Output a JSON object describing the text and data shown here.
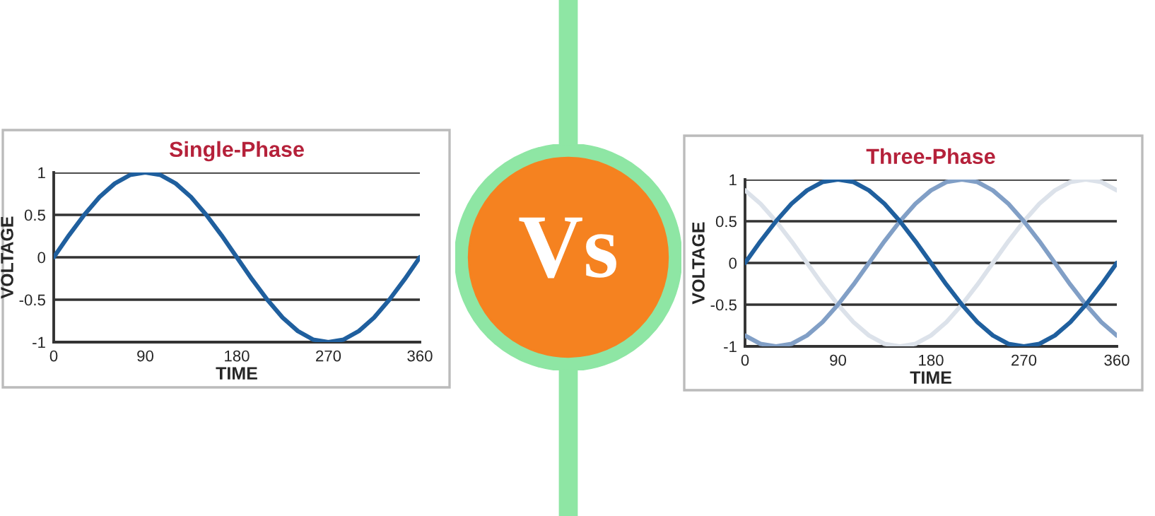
{
  "chart_data": [
    {
      "type": "line",
      "title": "Single-Phase",
      "xlabel": "TIME",
      "ylabel": "VOLTAGE",
      "xlim": [
        0,
        360
      ],
      "ylim": [
        -1,
        1
      ],
      "xticks": [
        0,
        90,
        180,
        270,
        360
      ],
      "yticks": [
        -1,
        -0.5,
        0,
        0.5,
        1
      ],
      "grid": "y",
      "legend": false,
      "marker": "none",
      "line_style": "solid",
      "x": [
        0,
        15,
        30,
        45,
        60,
        75,
        90,
        105,
        120,
        135,
        150,
        165,
        180,
        195,
        210,
        225,
        240,
        255,
        270,
        285,
        300,
        315,
        330,
        345,
        360
      ],
      "series": [
        {
          "color": "#1f5f9e",
          "values": [
            0,
            0.26,
            0.5,
            0.71,
            0.87,
            0.97,
            1,
            0.97,
            0.87,
            0.71,
            0.5,
            0.26,
            0,
            -0.26,
            -0.5,
            -0.71,
            -0.87,
            -0.97,
            -1,
            -0.97,
            -0.87,
            -0.71,
            -0.5,
            -0.26,
            0
          ]
        }
      ]
    },
    {
      "type": "other",
      "annotations": [
        "Vs"
      ]
    },
    {
      "type": "line",
      "title": "Three-Phase",
      "xlabel": "TIME",
      "ylabel": "VOLTAGE",
      "xlim": [
        0,
        360
      ],
      "ylim": [
        -1,
        1
      ],
      "xticks": [
        0,
        90,
        180,
        270,
        360
      ],
      "yticks": [
        -1,
        -0.5,
        0,
        0.5,
        1
      ],
      "grid": "y",
      "legend": false,
      "marker": "none",
      "line_style": "solid",
      "x": [
        0,
        15,
        30,
        45,
        60,
        75,
        90,
        105,
        120,
        135,
        150,
        165,
        180,
        195,
        210,
        225,
        240,
        255,
        270,
        285,
        300,
        315,
        330,
        345,
        360
      ],
      "series": [
        {
          "color": "#dce2ea",
          "values": [
            0.87,
            0.71,
            0.5,
            0.26,
            0,
            -0.26,
            -0.5,
            -0.71,
            -0.87,
            -0.97,
            -1,
            -0.97,
            -0.87,
            -0.71,
            -0.5,
            -0.26,
            0,
            0.26,
            0.5,
            0.71,
            0.87,
            0.97,
            1,
            0.97,
            0.87
          ]
        },
        {
          "color": "#819fc6",
          "values": [
            -0.87,
            -0.97,
            -1,
            -0.97,
            -0.87,
            -0.71,
            -0.5,
            -0.26,
            0,
            0.26,
            0.5,
            0.71,
            0.87,
            0.97,
            1,
            0.97,
            0.87,
            0.71,
            0.5,
            0.26,
            0,
            -0.26,
            -0.5,
            -0.71,
            -0.87
          ]
        },
        {
          "color": "#1f5f9e",
          "values": [
            0,
            0.26,
            0.5,
            0.71,
            0.87,
            0.97,
            1,
            0.97,
            0.87,
            0.71,
            0.5,
            0.26,
            0,
            -0.26,
            -0.5,
            -0.71,
            -0.87,
            -0.97,
            -1,
            -0.97,
            -0.87,
            -0.71,
            -0.5,
            -0.26,
            0
          ]
        }
      ]
    }
  ]
}
